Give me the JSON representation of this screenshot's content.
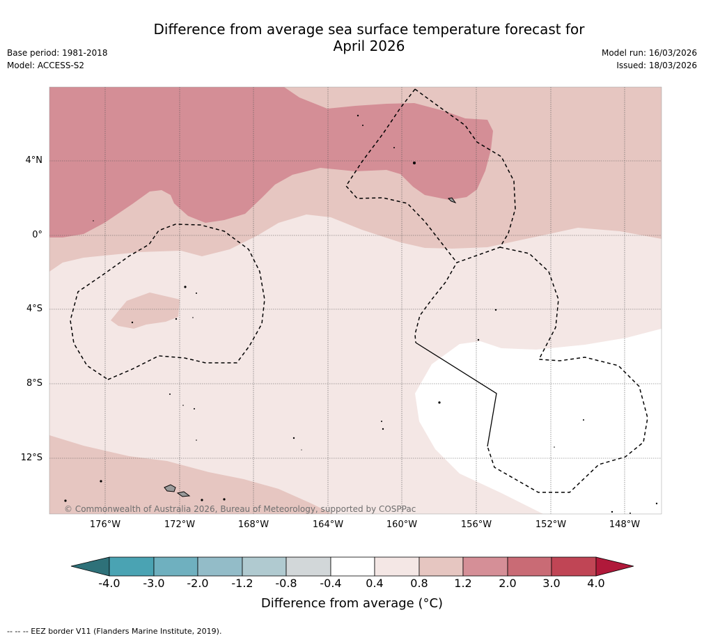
{
  "header": {
    "title_line1": "Difference from average sea surface temperature forecast for",
    "title_line2": "April 2026",
    "base_period": "Base period: 1981-2018",
    "model": "Model: ACCESS-S2",
    "model_run": "Model run: 16/03/2026",
    "issued": "Issued: 18/03/2026"
  },
  "map": {
    "copyright": "© Commonwealth of Australia 2026, Bureau of Meteorology, supported by COSPPac",
    "lon_labels": [
      "176°W",
      "172°W",
      "168°W",
      "164°W",
      "160°W",
      "156°W",
      "152°W",
      "148°W"
    ],
    "lat_labels": [
      "4°N",
      "0°",
      "4°S",
      "8°S",
      "12°S"
    ],
    "extent": {
      "lon_min": -179,
      "lon_max": -146,
      "lat_min": -15,
      "lat_max": 8
    },
    "anomaly_fill_colors": {
      "c0": "#ffffff",
      "c1": "#f4e7e5",
      "c2": "#e6c6c1",
      "c3": "#d48e96"
    }
  },
  "colorbar": {
    "label": "Difference from average (°C)",
    "ticks": [
      "-4.0",
      "-3.0",
      "-2.0",
      "-1.2",
      "-0.8",
      "-0.4",
      "0.4",
      "0.8",
      "1.2",
      "2.0",
      "3.0",
      "4.0"
    ],
    "colors": [
      "#2e7179",
      "#4aa3b3",
      "#6fb0bf",
      "#93bcc8",
      "#b0cad0",
      "#d2d7d9",
      "#ffffff",
      "#f4e7e5",
      "#e6c6c1",
      "#d58f97",
      "#c96b75",
      "#c04555",
      "#b0193a"
    ]
  },
  "footer": {
    "legend": "--  --  -- EEZ border V11 (Flanders Marine Institute, 2019)."
  }
}
